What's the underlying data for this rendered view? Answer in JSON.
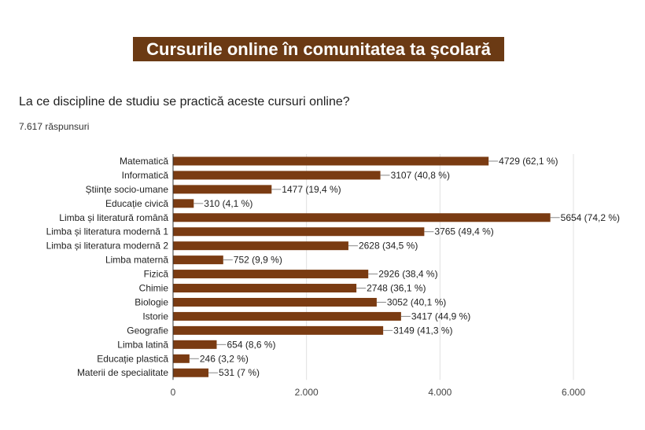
{
  "header": {
    "banner_title": "Cursurile online în comunitatea ta școlară",
    "question": "La ce discipline de studiu se practică aceste cursuri online?",
    "responses": "7.617 răspunsuri"
  },
  "colors": {
    "bar": "#7a3b12",
    "banner": "#6b3a14",
    "gridline": "#e0e0e0",
    "axis": "#333333",
    "leader": "#888888"
  },
  "chart_data": {
    "type": "bar",
    "orientation": "horizontal",
    "title": "",
    "xlabel": "",
    "ylabel": "",
    "xlim": [
      0,
      6000
    ],
    "x_ticks": [
      "0",
      "2.000",
      "4.000",
      "6.000"
    ],
    "x_tick_values": [
      0,
      2000,
      4000,
      6000
    ],
    "grid": true,
    "legend": "none",
    "categories": [
      "Matematică",
      "Informatică",
      "Științe socio-umane",
      "Educație civică",
      "Limba și literatură română",
      "Limba și literatura modernă 1",
      "Limba și literatura modernă 2",
      "Limba maternă",
      "Fizică",
      "Chimie",
      "Biologie",
      "Istorie",
      "Geografie",
      "Limba latină",
      "Educație plastică",
      "Materii de specialitate"
    ],
    "values": [
      4729,
      3107,
      1477,
      310,
      5654,
      3765,
      2628,
      752,
      2926,
      2748,
      3052,
      3417,
      3149,
      654,
      246,
      531
    ],
    "data_labels": [
      "4729 (62,1 %)",
      "3107 (40,8 %)",
      "1477 (19,4 %)",
      "310 (4,1 %)",
      "5654 (74,2 %)",
      "3765 (49,4 %)",
      "2628 (34,5 %)",
      "752 (9,9 %)",
      "2926 (38,4 %)",
      "2748 (36,1 %)",
      "3052 (40,1 %)",
      "3417 (44,9 %)",
      "3149 (41,3 %)",
      "654 (8,6 %)",
      "246 (3,2 %)",
      "531 (7 %)"
    ]
  }
}
